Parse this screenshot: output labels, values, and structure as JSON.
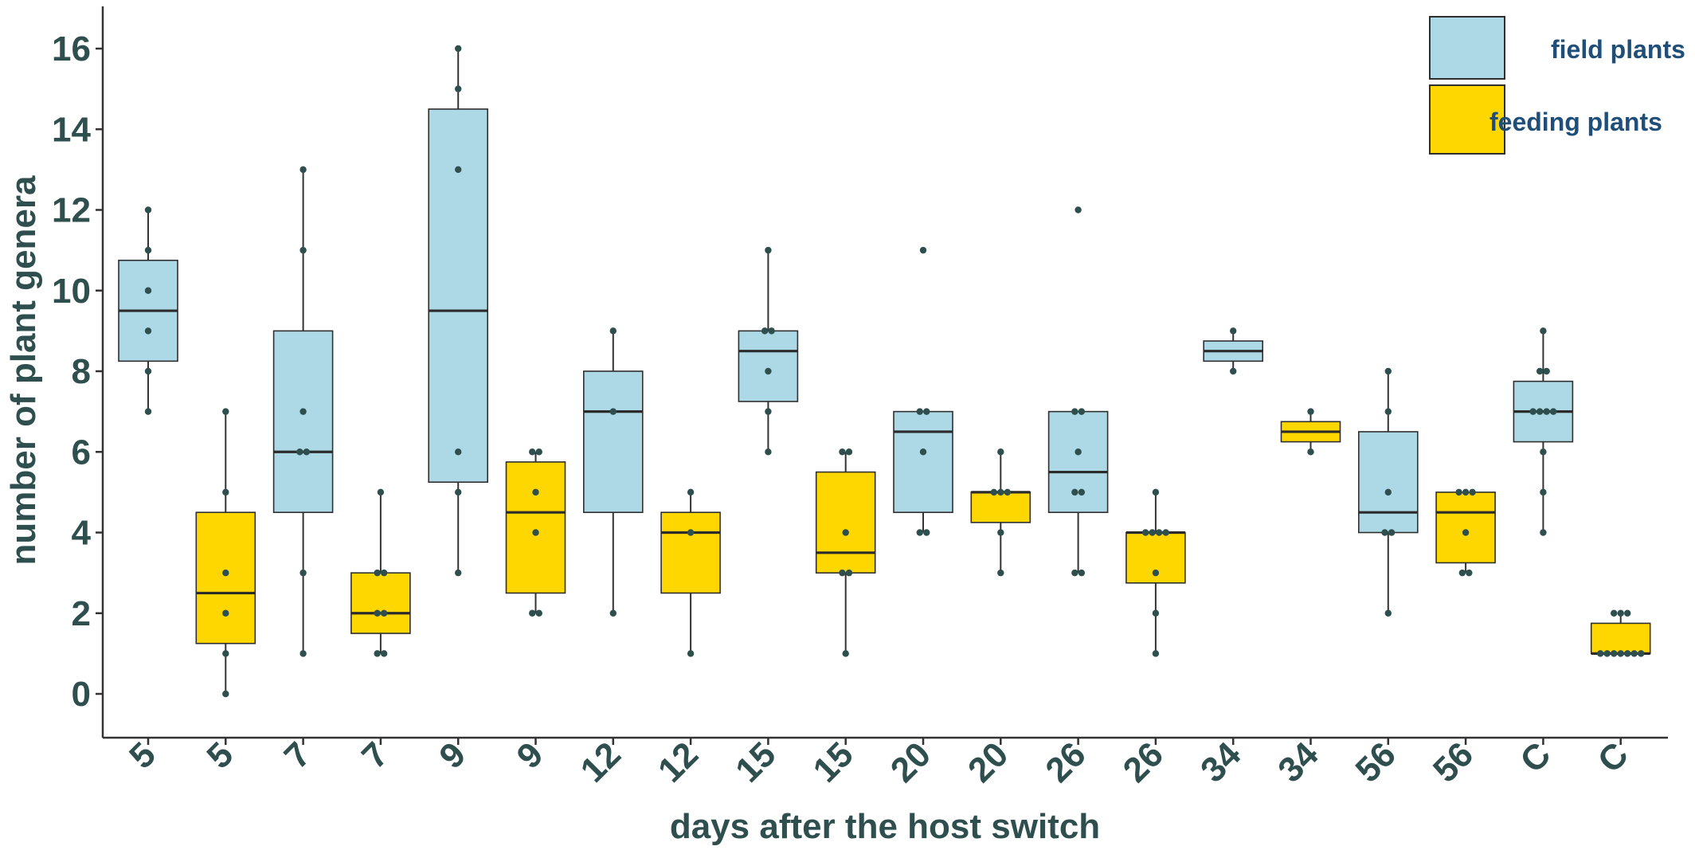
{
  "chart_data": {
    "type": "box",
    "xlabel": "days after the host switch",
    "ylabel": "number of plant genera",
    "ylim": [
      -1,
      17
    ],
    "yticks": [
      0,
      2,
      4,
      6,
      8,
      10,
      12,
      14,
      16
    ],
    "grid": false,
    "legend_position": "top-right",
    "colors": {
      "field plants": "#ADD8E6",
      "feeding plants": "#FFD700",
      "outline": "#2F2F2F",
      "points": "#2F4F4F",
      "text": "#2F4F4F",
      "legend_text": "#1F4E79"
    },
    "series": [
      {
        "name": "field plants",
        "color": "#ADD8E6"
      },
      {
        "name": "feeding plants",
        "color": "#FFD700"
      }
    ],
    "boxes": [
      {
        "label": "5",
        "series": "field plants",
        "whisker_low": 7,
        "q1": 8.25,
        "median": 9.5,
        "q3": 10.75,
        "whisker_high": 12,
        "points": [
          7,
          8,
          9,
          10,
          11,
          12
        ]
      },
      {
        "label": "5",
        "series": "feeding plants",
        "whisker_low": 0,
        "q1": 1.25,
        "median": 2.5,
        "q3": 4.5,
        "whisker_high": 7,
        "points": [
          0,
          1,
          2,
          3,
          5,
          7
        ]
      },
      {
        "label": "7",
        "series": "field plants",
        "whisker_low": 1,
        "q1": 4.5,
        "median": 6,
        "q3": 9,
        "whisker_high": 13,
        "points": [
          1,
          3,
          6,
          6,
          7,
          11,
          13
        ]
      },
      {
        "label": "7",
        "series": "feeding plants",
        "whisker_low": 1,
        "q1": 1.5,
        "median": 2,
        "q3": 3,
        "whisker_high": 5,
        "points": [
          1,
          1,
          2,
          2,
          3,
          3,
          5
        ]
      },
      {
        "label": "9",
        "series": "field plants",
        "whisker_low": 3,
        "q1": 5.25,
        "median": 9.5,
        "q3": 14.5,
        "whisker_high": 16,
        "points": [
          3,
          5,
          6,
          13,
          15,
          16
        ]
      },
      {
        "label": "9",
        "series": "feeding plants",
        "whisker_low": 2,
        "q1": 2.5,
        "median": 4.5,
        "q3": 5.75,
        "whisker_high": 6,
        "points": [
          2,
          2,
          4,
          5,
          6,
          6
        ]
      },
      {
        "label": "12",
        "series": "field plants",
        "whisker_low": 2,
        "q1": 4.5,
        "median": 7,
        "q3": 8,
        "whisker_high": 9,
        "points": [
          2,
          7,
          9
        ]
      },
      {
        "label": "12",
        "series": "feeding plants",
        "whisker_low": 1,
        "q1": 2.5,
        "median": 4,
        "q3": 4.5,
        "whisker_high": 5,
        "points": [
          1,
          4,
          5
        ]
      },
      {
        "label": "15",
        "series": "field plants",
        "whisker_low": 6,
        "q1": 7.25,
        "median": 8.5,
        "q3": 9,
        "whisker_high": 11,
        "points": [
          6,
          7,
          8,
          9,
          9,
          11
        ]
      },
      {
        "label": "15",
        "series": "feeding plants",
        "whisker_low": 1,
        "q1": 3,
        "median": 3.5,
        "q3": 5.5,
        "whisker_high": 6,
        "points": [
          1,
          3,
          3,
          4,
          6,
          6
        ]
      },
      {
        "label": "20",
        "series": "field plants",
        "whisker_low": 4,
        "q1": 4.5,
        "median": 6.5,
        "q3": 7,
        "whisker_high": 7,
        "points": [
          4,
          4,
          6,
          7,
          7,
          11
        ]
      },
      {
        "label": "20",
        "series": "feeding plants",
        "whisker_low": 3,
        "q1": 4.25,
        "median": 5,
        "q3": 5,
        "whisker_high": 6,
        "points": [
          3,
          4,
          5,
          5,
          5,
          6
        ]
      },
      {
        "label": "26",
        "series": "field plants",
        "whisker_low": 3,
        "q1": 4.5,
        "median": 5.5,
        "q3": 7,
        "whisker_high": 7,
        "points": [
          3,
          3,
          5,
          5,
          6,
          7,
          7,
          12
        ]
      },
      {
        "label": "26",
        "series": "feeding plants",
        "whisker_low": 1,
        "q1": 2.75,
        "median": 4,
        "q3": 4,
        "whisker_high": 5,
        "points": [
          1,
          2,
          3,
          4,
          4,
          4,
          4,
          5
        ]
      },
      {
        "label": "34",
        "series": "field plants",
        "whisker_low": 8,
        "q1": 8.25,
        "median": 8.5,
        "q3": 8.75,
        "whisker_high": 9,
        "points": [
          8,
          9
        ]
      },
      {
        "label": "34",
        "series": "feeding plants",
        "whisker_low": 6,
        "q1": 6.25,
        "median": 6.5,
        "q3": 6.75,
        "whisker_high": 7,
        "points": [
          6,
          7
        ]
      },
      {
        "label": "56",
        "series": "field plants",
        "whisker_low": 2,
        "q1": 4,
        "median": 4.5,
        "q3": 6.5,
        "whisker_high": 8,
        "points": [
          2,
          4,
          4,
          5,
          7,
          8
        ]
      },
      {
        "label": "56",
        "series": "feeding plants",
        "whisker_low": 3,
        "q1": 3.25,
        "median": 4.5,
        "q3": 5,
        "whisker_high": 5,
        "points": [
          3,
          3,
          4,
          5,
          5,
          5
        ]
      },
      {
        "label": "C",
        "series": "field plants",
        "whisker_low": 4,
        "q1": 6.25,
        "median": 7,
        "q3": 7.75,
        "whisker_high": 9,
        "points": [
          4,
          5,
          6,
          7,
          7,
          7,
          7,
          8,
          8,
          9
        ]
      },
      {
        "label": "C",
        "series": "feeding plants",
        "whisker_low": 1,
        "q1": 1,
        "median": 1,
        "q3": 1.75,
        "whisker_high": 2,
        "points": [
          1,
          1,
          1,
          1,
          1,
          1,
          1,
          2,
          2,
          2
        ]
      }
    ]
  }
}
